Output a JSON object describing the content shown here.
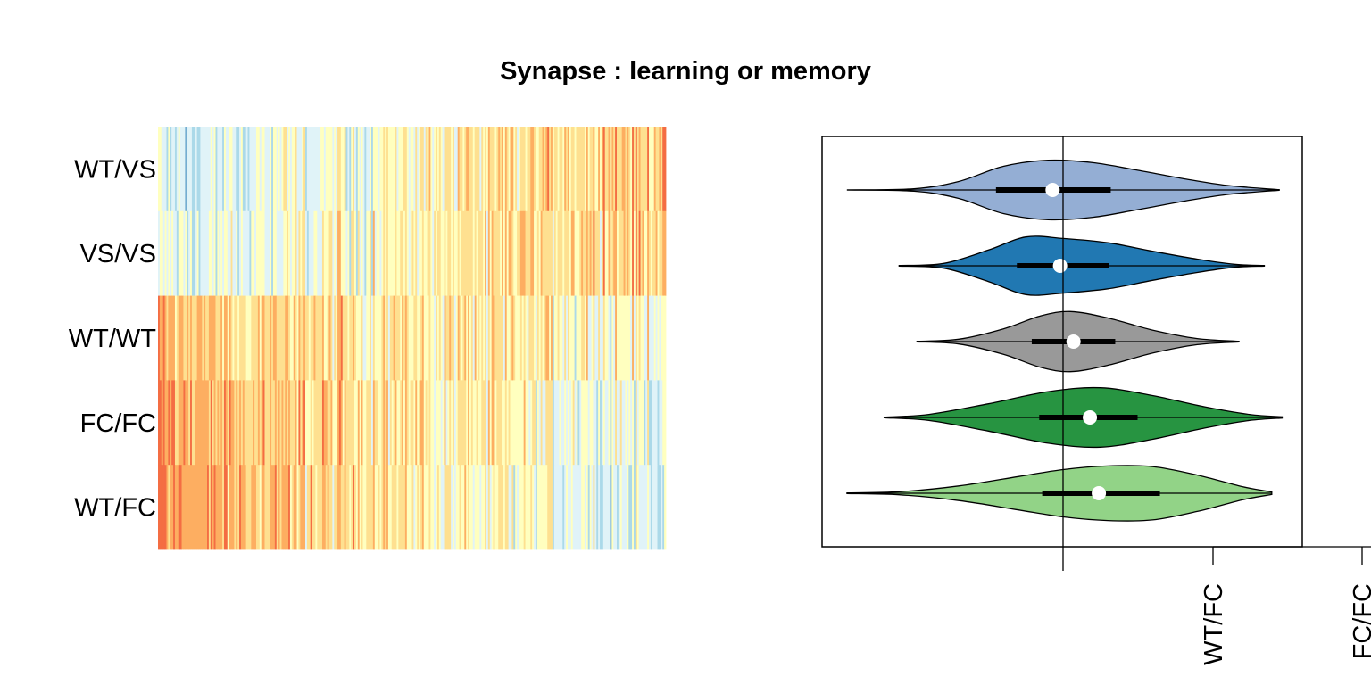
{
  "chart_data": [
    {
      "type": "heatmap",
      "title": "Synapse : learning or memory",
      "rows": [
        "WT/VS",
        "VS/VS",
        "WT/WT",
        "FC/FC",
        "WT/FC"
      ],
      "n_columns": 300,
      "palette": [
        "#313695",
        "#4575b4",
        "#74add1",
        "#abd9e9",
        "#e0f3f8",
        "#ffffbf",
        "#fee090",
        "#fdae61",
        "#f46d43",
        "#d73027",
        "#a50026"
      ],
      "column_trend": {
        "WT/VS": [
          -0.9,
          1.1
        ],
        "VS/VS": [
          -0.6,
          0.9
        ],
        "WT/WT": [
          0.9,
          0.0
        ],
        "FC/FC": [
          1.3,
          -0.4
        ],
        "WT/FC": [
          1.4,
          -0.7
        ]
      }
    },
    {
      "type": "violin",
      "orientation": "horizontal",
      "groups": [
        {
          "name": "WT/VS",
          "color": "#94aed4",
          "min": -1.45,
          "q1": -0.45,
          "median": -0.07,
          "q3": 0.32,
          "max": 1.45,
          "density": [
            [
              -1.45,
              0.0
            ],
            [
              -1.0,
              0.04
            ],
            [
              -0.7,
              0.28
            ],
            [
              -0.4,
              0.78
            ],
            [
              -0.1,
              0.98
            ],
            [
              0.2,
              0.9
            ],
            [
              0.5,
              0.65
            ],
            [
              0.8,
              0.38
            ],
            [
              1.1,
              0.15
            ],
            [
              1.45,
              0.01
            ]
          ]
        },
        {
          "name": "VS/VS",
          "color": "#2178b2",
          "min": -1.1,
          "q1": -0.31,
          "median": -0.02,
          "q3": 0.31,
          "max": 1.35,
          "density": [
            [
              -1.1,
              0.01
            ],
            [
              -0.8,
              0.08
            ],
            [
              -0.5,
              0.52
            ],
            [
              -0.25,
              0.95
            ],
            [
              0.0,
              0.9
            ],
            [
              0.3,
              0.76
            ],
            [
              0.6,
              0.48
            ],
            [
              0.9,
              0.22
            ],
            [
              1.15,
              0.05
            ],
            [
              1.35,
              0.01
            ]
          ]
        },
        {
          "name": "WT/WT",
          "color": "#999999",
          "min": -0.98,
          "q1": -0.21,
          "median": 0.07,
          "q3": 0.35,
          "max": 1.18,
          "density": [
            [
              -0.98,
              0.01
            ],
            [
              -0.7,
              0.08
            ],
            [
              -0.4,
              0.42
            ],
            [
              -0.15,
              0.85
            ],
            [
              0.05,
              0.99
            ],
            [
              0.3,
              0.78
            ],
            [
              0.6,
              0.38
            ],
            [
              0.9,
              0.1
            ],
            [
              1.18,
              0.01
            ]
          ]
        },
        {
          "name": "FC/FC",
          "color": "#279441",
          "min": -1.2,
          "q1": -0.16,
          "median": 0.18,
          "q3": 0.5,
          "max": 1.47,
          "density": [
            [
              -1.2,
              0.01
            ],
            [
              -0.9,
              0.1
            ],
            [
              -0.5,
              0.45
            ],
            [
              -0.1,
              0.85
            ],
            [
              0.25,
              0.98
            ],
            [
              0.6,
              0.72
            ],
            [
              0.95,
              0.35
            ],
            [
              1.25,
              0.1
            ],
            [
              1.47,
              0.02
            ]
          ]
        },
        {
          "name": "WT/FC",
          "color": "#92d387",
          "min": -1.45,
          "q1": -0.14,
          "median": 0.24,
          "q3": 0.65,
          "max": 1.4,
          "density": [
            [
              -1.45,
              0.01
            ],
            [
              -1.1,
              0.05
            ],
            [
              -0.7,
              0.24
            ],
            [
              -0.3,
              0.55
            ],
            [
              0.0,
              0.78
            ],
            [
              0.3,
              0.9
            ],
            [
              0.6,
              0.88
            ],
            [
              0.9,
              0.6
            ],
            [
              1.2,
              0.22
            ],
            [
              1.4,
              0.04
            ]
          ]
        }
      ],
      "reference_x": 0.0,
      "xlim": [
        -1.6,
        1.6
      ],
      "x_tick_labels": [
        "WT/FC",
        "FC/FC"
      ]
    }
  ]
}
